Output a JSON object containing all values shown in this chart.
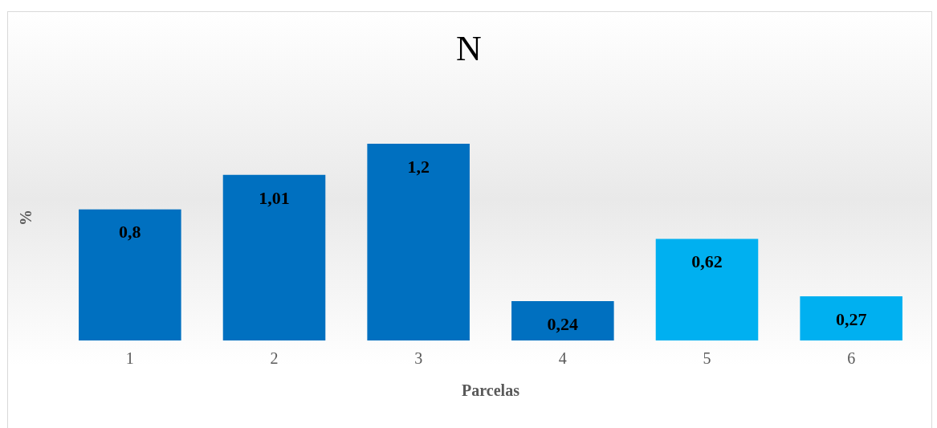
{
  "chart_data": {
    "type": "bar",
    "title": "N",
    "xlabel": "Parcelas",
    "ylabel": "%",
    "categories": [
      "1",
      "2",
      "3",
      "4",
      "5",
      "6"
    ],
    "values": [
      0.8,
      1.01,
      1.2,
      0.24,
      0.62,
      0.27
    ],
    "colors": [
      "#0070c0",
      "#0070c0",
      "#0070c0",
      "#0070c0",
      "#00b0f0",
      "#00b0f0"
    ],
    "value_labels": [
      "0,8",
      "1,01",
      "1,2",
      "0,24",
      "0,62",
      "0,27"
    ],
    "grid": false,
    "legend": false
  }
}
